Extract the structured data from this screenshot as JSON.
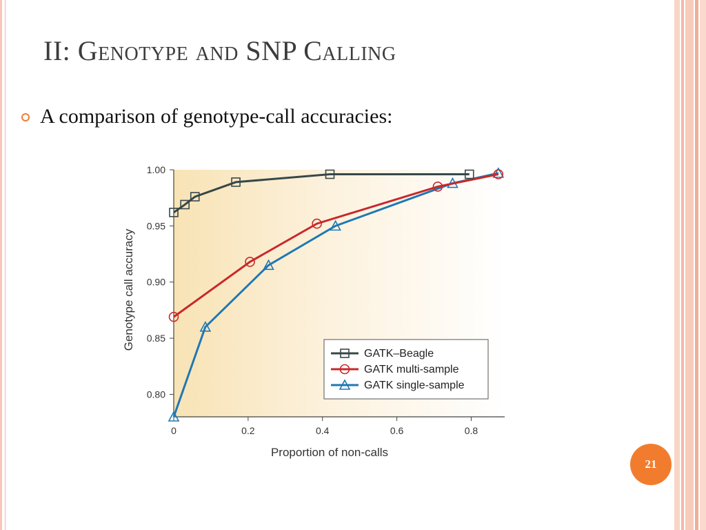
{
  "slide": {
    "title": "II: Genotype and SNP Calling",
    "bullet": "A comparison of genotype-call accuracies:",
    "page_number": "21"
  },
  "colors": {
    "accent": "#f27c2e",
    "series_beagle": "#37474a",
    "series_multi": "#c8282b",
    "series_single": "#1f78b4"
  },
  "chart_data": {
    "type": "line",
    "title": "",
    "xlabel": "Proportion of non-calls",
    "ylabel": "Genotype call accuracy",
    "xlim": [
      0,
      0.89
    ],
    "ylim": [
      0.78,
      1.0
    ],
    "xticks": [
      "0",
      "0.2",
      "0.4",
      "0.6",
      "0.8"
    ],
    "yticks": [
      "0.80",
      "0.85",
      "0.90",
      "0.95",
      "1.00"
    ],
    "grid": false,
    "legend_position": "bottom-right",
    "background": "gradient-cream",
    "series": [
      {
        "name": "GATK–Beagle",
        "marker": "square",
        "color": "#37474a",
        "x": [
          0,
          0.03,
          0.057,
          0.167,
          0.42,
          0.795
        ],
        "y": [
          0.962,
          0.969,
          0.976,
          0.989,
          0.996,
          0.996
        ]
      },
      {
        "name": "GATK multi-sample",
        "marker": "circle",
        "color": "#c8282b",
        "x": [
          0,
          0.205,
          0.385,
          0.71,
          0.873
        ],
        "y": [
          0.869,
          0.918,
          0.952,
          0.985,
          0.996
        ]
      },
      {
        "name": "GATK single-sample",
        "marker": "triangle",
        "color": "#1f78b4",
        "x": [
          0,
          0.085,
          0.255,
          0.435,
          0.75,
          0.873
        ],
        "y": [
          0.78,
          0.86,
          0.915,
          0.95,
          0.988,
          0.997
        ]
      }
    ]
  }
}
